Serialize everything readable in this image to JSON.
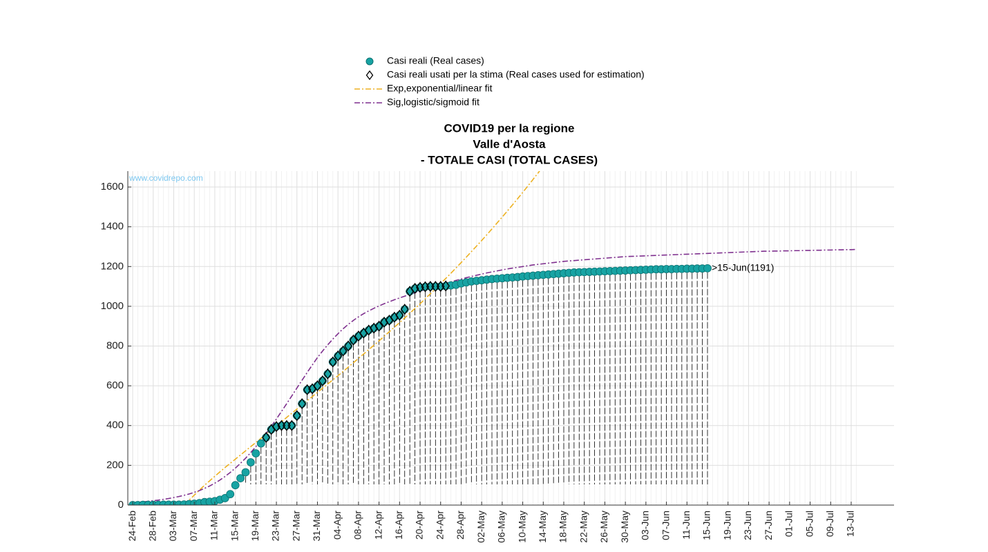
{
  "chart_data": {
    "type": "line",
    "title": [
      "COVID19 per la regione",
      "Valle d'Aosta",
      "- TOTALE CASI (TOTAL CASES)"
    ],
    "watermark": "www.covidrepo.com",
    "annotation": ">15-Jun(1191)",
    "legend": "top",
    "grid": true,
    "ylim": [
      0,
      1680
    ],
    "yticks": [
      0,
      200,
      400,
      600,
      800,
      1000,
      1200,
      1400,
      1600
    ],
    "categories": [
      "24-Feb",
      null,
      null,
      null,
      "28-Feb",
      null,
      null,
      null,
      "03-Mar",
      null,
      null,
      null,
      "07-Mar",
      null,
      null,
      null,
      "11-Mar",
      null,
      null,
      null,
      "15-Mar",
      null,
      null,
      null,
      "19-Mar",
      null,
      null,
      null,
      "23-Mar",
      null,
      null,
      null,
      "27-Mar",
      null,
      null,
      null,
      "31-Mar",
      null,
      null,
      null,
      "04-Apr",
      null,
      null,
      null,
      "08-Apr",
      null,
      null,
      null,
      "12-Apr",
      null,
      null,
      null,
      "16-Apr",
      null,
      null,
      null,
      "20-Apr",
      null,
      null,
      null,
      "24-Apr",
      null,
      null,
      null,
      "28-Apr",
      null,
      null,
      null,
      "02-May",
      null,
      null,
      null,
      "06-May",
      null,
      null,
      null,
      "10-May",
      null,
      null,
      null,
      "14-May",
      null,
      null,
      null,
      "18-May",
      null,
      null,
      null,
      "22-May",
      null,
      null,
      null,
      "26-May",
      null,
      null,
      null,
      "30-May",
      null,
      null,
      null,
      "03-Jun",
      null,
      null,
      null,
      "07-Jun",
      null,
      null,
      null,
      "11-Jun",
      null,
      null,
      null,
      "15-Jun",
      null,
      null,
      null,
      "19-Jun",
      null,
      null,
      null,
      "23-Jun",
      null,
      null,
      null,
      "27-Jun",
      null,
      null,
      null,
      "01-Jul",
      null,
      null,
      null,
      "05-Jul",
      null,
      null,
      null,
      "09-Jul",
      null,
      null,
      null,
      "13-Jul",
      null
    ],
    "series": [
      {
        "name": "Casi reali (Real cases)",
        "mark": "circle",
        "color": "#17a3a3",
        "values": [
          0,
          0,
          1,
          1,
          1,
          1,
          2,
          2,
          2,
          2,
          3,
          5,
          7,
          10,
          15,
          17,
          20,
          27,
          35,
          55,
          100,
          135,
          165,
          215,
          260,
          310,
          340,
          380,
          395,
          400,
          400,
          400,
          450,
          510,
          580,
          585,
          600,
          625,
          660,
          720,
          750,
          775,
          800,
          830,
          850,
          865,
          880,
          890,
          900,
          920,
          930,
          945,
          955,
          985,
          1075,
          1090,
          1095,
          1098,
          1100,
          1100,
          1100,
          1102,
          1105,
          1108,
          1115,
          1120,
          1125,
          1128,
          1131,
          1134,
          1137,
          1139,
          1141,
          1143,
          1145,
          1147,
          1150,
          1152,
          1154,
          1156,
          1158,
          1160,
          1162,
          1164,
          1166,
          1168,
          1170,
          1171,
          1172,
          1173,
          1174,
          1175,
          1176,
          1177,
          1178,
          1179,
          1180,
          1181,
          1182,
          1183,
          1184,
          1185,
          1186,
          1186,
          1187,
          1187,
          1188,
          1188,
          1189,
          1189,
          1190,
          1190,
          1191,
          null,
          null,
          null,
          null,
          null,
          null,
          null,
          null,
          null,
          null,
          null,
          null,
          null,
          null,
          null,
          null,
          null,
          null,
          null,
          null,
          null,
          null,
          null,
          null,
          null,
          null,
          null,
          null,
          null
        ]
      },
      {
        "name": "Casi reali usati per la stima (Real cases used for estimation)",
        "mark": "diamond",
        "color": "#000000",
        "values": [
          null,
          null,
          null,
          null,
          null,
          null,
          null,
          null,
          null,
          null,
          null,
          null,
          null,
          null,
          null,
          null,
          null,
          null,
          null,
          null,
          null,
          null,
          null,
          null,
          null,
          null,
          340,
          380,
          395,
          400,
          400,
          400,
          450,
          510,
          580,
          585,
          600,
          625,
          660,
          720,
          750,
          775,
          800,
          830,
          850,
          865,
          880,
          890,
          900,
          920,
          930,
          945,
          955,
          985,
          1075,
          1090,
          1095,
          1098,
          1100,
          1100,
          1100,
          1102,
          null,
          null,
          null,
          null,
          null,
          null,
          null,
          null,
          null,
          null,
          null,
          null,
          null,
          null,
          null,
          null,
          null,
          null,
          null,
          null,
          null,
          null,
          null,
          null,
          null,
          null,
          null,
          null,
          null,
          null,
          null,
          null,
          null,
          null,
          null,
          null,
          null,
          null,
          null,
          null,
          null,
          null,
          null,
          null,
          null,
          null,
          null,
          null,
          null,
          null,
          null,
          null,
          null,
          null,
          null,
          null,
          null,
          null,
          null,
          null,
          null,
          null,
          null,
          null,
          null,
          null,
          null,
          null,
          null,
          null,
          null,
          null,
          null,
          null,
          null,
          null,
          null,
          null,
          null,
          null
        ]
      },
      {
        "name": "Exp,exponential/linear fit",
        "mark": "dashdot",
        "color": "#EDB120",
        "values": [
          null,
          null,
          null,
          null,
          null,
          null,
          null,
          null,
          null,
          null,
          0,
          25,
          50,
          75,
          100,
          122,
          145,
          167,
          189,
          210,
          231,
          252,
          273,
          294,
          315,
          336,
          357,
          378,
          399,
          420,
          441,
          462,
          483,
          504,
          525,
          546,
          567,
          588,
          609,
          630,
          651,
          672,
          694,
          716,
          738,
          760,
          782,
          804,
          826,
          849,
          872,
          895,
          918,
          941,
          965,
          989,
          1013,
          1038,
          1063,
          1088,
          1114,
          1140,
          1166,
          1193,
          1220,
          1247,
          1275,
          1303,
          1331,
          1360,
          1389,
          1419,
          1449,
          1479,
          1510,
          1541,
          1573,
          1605,
          1638,
          1671,
          1705,
          1740,
          null,
          null,
          null,
          null,
          null,
          null,
          null,
          null,
          null,
          null,
          null,
          null,
          null,
          null,
          null,
          null,
          null,
          null,
          null,
          null,
          null,
          null,
          null,
          null,
          null,
          null,
          null,
          null,
          null,
          null,
          null,
          null,
          null,
          null,
          null,
          null,
          null,
          null,
          null,
          null,
          null,
          null,
          null,
          null,
          null,
          null,
          null,
          null,
          null,
          null,
          null,
          null,
          null,
          null,
          null,
          null,
          null,
          null,
          null,
          null
        ]
      },
      {
        "name": "Sig,logistic/sigmoid fit",
        "mark": "dashdot",
        "color": "#7E2F8E",
        "values": [
          12,
          14,
          16,
          19,
          22,
          25,
          29,
          33,
          38,
          43,
          49,
          56,
          64,
          73,
          84,
          96,
          110,
          126,
          144,
          164,
          186,
          210,
          236,
          264,
          294,
          326,
          360,
          396,
          433,
          471,
          510,
          549,
          589,
          628,
          667,
          705,
          742,
          775,
          806,
          835,
          862,
          887,
          909,
          929,
          947,
          963,
          977,
          990,
          1002,
          1013,
          1023,
          1033,
          1042,
          1051,
          1060,
          1068,
          1076,
          1084,
          1092,
          1100,
          1108,
          1116,
          1123,
          1130,
          1137,
          1144,
          1150,
          1156,
          1162,
          1168,
          1173,
          1178,
          1183,
          1188,
          1192,
          1196,
          1200,
          1204,
          1208,
          1211,
          1214,
          1217,
          1220,
          1223,
          1226,
          1228,
          1230,
          1232,
          1234,
          1236,
          1238,
          1240,
          1242,
          1244,
          1246,
          1248,
          1250,
          1251,
          1252,
          1253,
          1254,
          1255,
          1256,
          1257,
          1258,
          1259,
          1260,
          1261,
          1262,
          1263,
          1264,
          1265,
          1266,
          1267,
          1268,
          1269,
          1270,
          1271,
          1272,
          1273,
          1274,
          1275,
          1276,
          1277,
          1277,
          1278,
          1278,
          1279,
          1279,
          1280,
          1280,
          1281,
          1281,
          1282,
          1282,
          1283,
          1283,
          1284,
          1284,
          1285,
          1285,
          1286
        ]
      }
    ]
  }
}
